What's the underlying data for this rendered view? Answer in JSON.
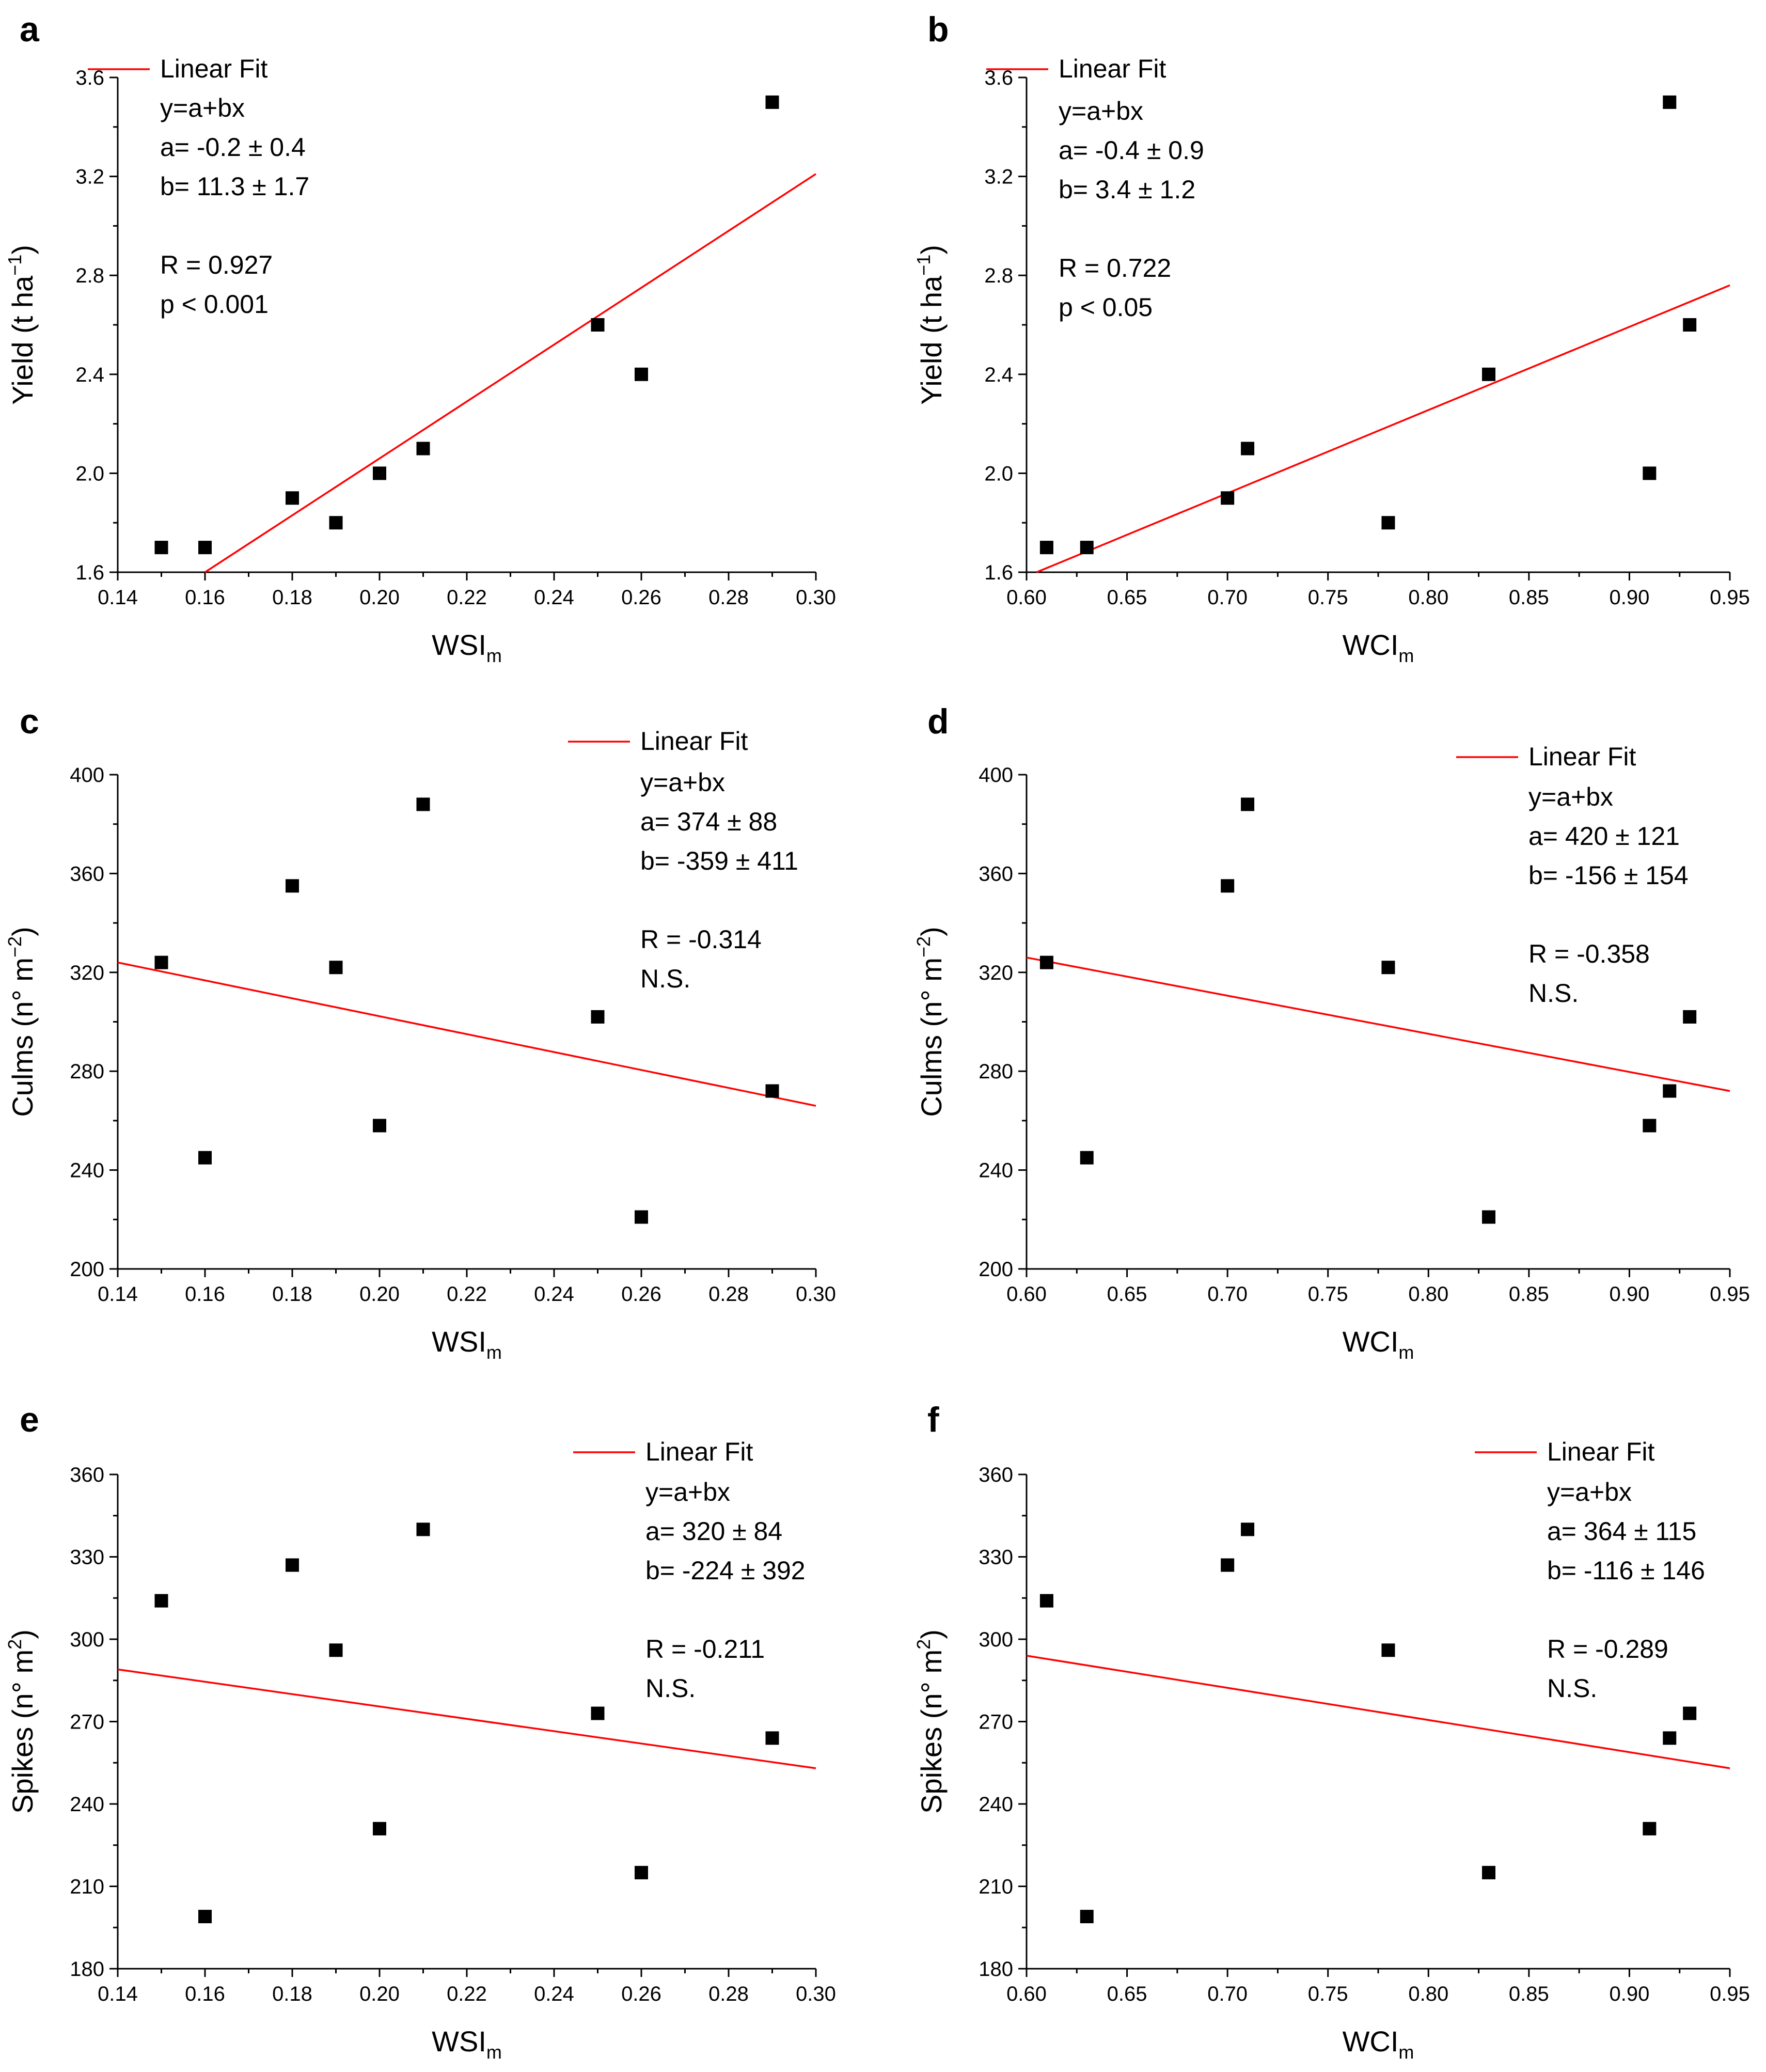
{
  "figure": {
    "colors": {
      "fit": "#ff0000",
      "points": "#000000",
      "axis": "#000000"
    },
    "x_label_sub": "m"
  },
  "chart_data": [
    {
      "panel": "a",
      "type": "scatter",
      "xlabel": "WSI",
      "ylabel": "Yield (t ha",
      "ylabel_sup": "−1",
      "ylabel_close": ")",
      "xlim": [
        0.14,
        0.3
      ],
      "ylim": [
        1.6,
        3.6
      ],
      "xticks": [
        "0.14",
        "0.16",
        "0.18",
        "0.20",
        "0.22",
        "0.24",
        "0.26",
        "0.28",
        "0.30"
      ],
      "yticks": [
        "1.6",
        "2.0",
        "2.4",
        "2.8",
        "3.2",
        "3.6"
      ],
      "x": [
        0.15,
        0.16,
        0.18,
        0.19,
        0.2,
        0.21,
        0.25,
        0.26,
        0.29
      ],
      "y": [
        1.7,
        1.7,
        1.9,
        1.8,
        2.0,
        2.1,
        2.6,
        2.4,
        3.5
      ],
      "fit": {
        "x": [
          0.16,
          0.3
        ],
        "y": [
          1.6,
          3.21
        ]
      },
      "legend": "Linear Fit",
      "annotations": [
        "y=a+bx",
        "a= -0.2 ± 0.4",
        "b= 11.3 ± 1.7",
        "R = 0.927",
        "p < 0.001"
      ]
    },
    {
      "panel": "b",
      "type": "scatter",
      "xlabel": "WCI",
      "ylabel": "Yield (t ha",
      "ylabel_sup": "−1",
      "ylabel_close": ")",
      "xlim": [
        0.6,
        0.95
      ],
      "ylim": [
        1.6,
        3.6
      ],
      "xticks": [
        "0.60",
        "0.65",
        "0.70",
        "0.75",
        "0.80",
        "0.85",
        "0.90",
        "0.95"
      ],
      "yticks": [
        "1.6",
        "2.0",
        "2.4",
        "2.8",
        "3.2",
        "3.6"
      ],
      "x": [
        0.61,
        0.63,
        0.7,
        0.71,
        0.78,
        0.83,
        0.91,
        0.92,
        0.93
      ],
      "y": [
        1.7,
        1.7,
        1.9,
        2.1,
        1.8,
        2.4,
        2.0,
        3.5,
        2.6
      ],
      "fit": {
        "x": [
          0.605,
          0.95
        ],
        "y": [
          1.6,
          2.76
        ]
      },
      "legend": "Linear Fit",
      "annotations": [
        "y=a+bx",
        "a= -0.4 ± 0.9",
        "b=  3.4 ± 1.2",
        "R = 0.722",
        "p < 0.05"
      ]
    },
    {
      "panel": "c",
      "type": "scatter",
      "xlabel": "WSI",
      "ylabel": "Culms (n° m",
      "ylabel_sup": "−2",
      "ylabel_close": ")",
      "xlim": [
        0.14,
        0.3
      ],
      "ylim": [
        200,
        400
      ],
      "xticks": [
        "0.14",
        "0.16",
        "0.18",
        "0.20",
        "0.22",
        "0.24",
        "0.26",
        "0.28",
        "0.30"
      ],
      "yticks": [
        "200",
        "240",
        "280",
        "320",
        "360",
        "400"
      ],
      "x": [
        0.15,
        0.16,
        0.18,
        0.19,
        0.2,
        0.21,
        0.25,
        0.26,
        0.29
      ],
      "y": [
        324,
        245,
        355,
        322,
        258,
        388,
        302,
        221,
        272
      ],
      "fit": {
        "x": [
          0.14,
          0.3
        ],
        "y": [
          324,
          266
        ]
      },
      "legend": "Linear Fit",
      "annotations": [
        "y=a+bx",
        "a=  374 ± 88",
        "b= -359 ± 411",
        "R = -0.314",
        "N.S."
      ]
    },
    {
      "panel": "d",
      "type": "scatter",
      "xlabel": "WCI",
      "ylabel": "Culms (n° m",
      "ylabel_sup": "−2",
      "ylabel_close": ")",
      "xlim": [
        0.6,
        0.95
      ],
      "ylim": [
        200,
        400
      ],
      "xticks": [
        "0.60",
        "0.65",
        "0.70",
        "0.75",
        "0.80",
        "0.85",
        "0.90",
        "0.95"
      ],
      "yticks": [
        "200",
        "240",
        "280",
        "320",
        "360",
        "400"
      ],
      "x": [
        0.61,
        0.63,
        0.7,
        0.71,
        0.78,
        0.83,
        0.91,
        0.92,
        0.93
      ],
      "y": [
        324,
        245,
        355,
        388,
        322,
        221,
        258,
        272,
        302
      ],
      "fit": {
        "x": [
          0.6,
          0.95
        ],
        "y": [
          326,
          272
        ]
      },
      "legend": "Linear Fit",
      "annotations": [
        "y=a+bx",
        "a=  420 ± 121",
        "b= -156 ± 154",
        "R = -0.358",
        "N.S."
      ]
    },
    {
      "panel": "e",
      "type": "scatter",
      "xlabel": "WSI",
      "ylabel": "Spikes (n° m",
      "ylabel_sup": "2",
      "ylabel_close": ")",
      "xlim": [
        0.14,
        0.3
      ],
      "ylim": [
        180,
        360
      ],
      "xticks": [
        "0.14",
        "0.16",
        "0.18",
        "0.20",
        "0.22",
        "0.24",
        "0.26",
        "0.28",
        "0.30"
      ],
      "yticks": [
        "180",
        "210",
        "240",
        "270",
        "300",
        "330",
        "360"
      ],
      "x": [
        0.15,
        0.16,
        0.18,
        0.19,
        0.2,
        0.21,
        0.25,
        0.26,
        0.29
      ],
      "y": [
        314,
        199,
        327,
        296,
        231,
        340,
        273,
        215,
        264
      ],
      "fit": {
        "x": [
          0.14,
          0.3
        ],
        "y": [
          289,
          253
        ]
      },
      "legend": "Linear Fit",
      "annotations": [
        "y=a+bx",
        "a=  320 ± 84",
        "b= -224 ± 392",
        "R = -0.211",
        "N.S."
      ]
    },
    {
      "panel": "f",
      "type": "scatter",
      "xlabel": "WCI",
      "ylabel": "Spikes (n° m",
      "ylabel_sup": "2",
      "ylabel_close": ")",
      "xlim": [
        0.6,
        0.95
      ],
      "ylim": [
        180,
        360
      ],
      "xticks": [
        "0.60",
        "0.65",
        "0.70",
        "0.75",
        "0.80",
        "0.85",
        "0.90",
        "0.95"
      ],
      "yticks": [
        "180",
        "210",
        "240",
        "270",
        "300",
        "330",
        "360"
      ],
      "x": [
        0.61,
        0.63,
        0.7,
        0.71,
        0.78,
        0.83,
        0.91,
        0.92,
        0.93
      ],
      "y": [
        314,
        199,
        327,
        340,
        296,
        215,
        231,
        264,
        273
      ],
      "fit": {
        "x": [
          0.6,
          0.95
        ],
        "y": [
          294,
          253
        ]
      },
      "legend": "Linear Fit",
      "annotations": [
        "y=a+bx",
        "a=  364 ± 115",
        "b= -116 ± 146",
        "R = -0.289",
        "N.S."
      ]
    }
  ]
}
